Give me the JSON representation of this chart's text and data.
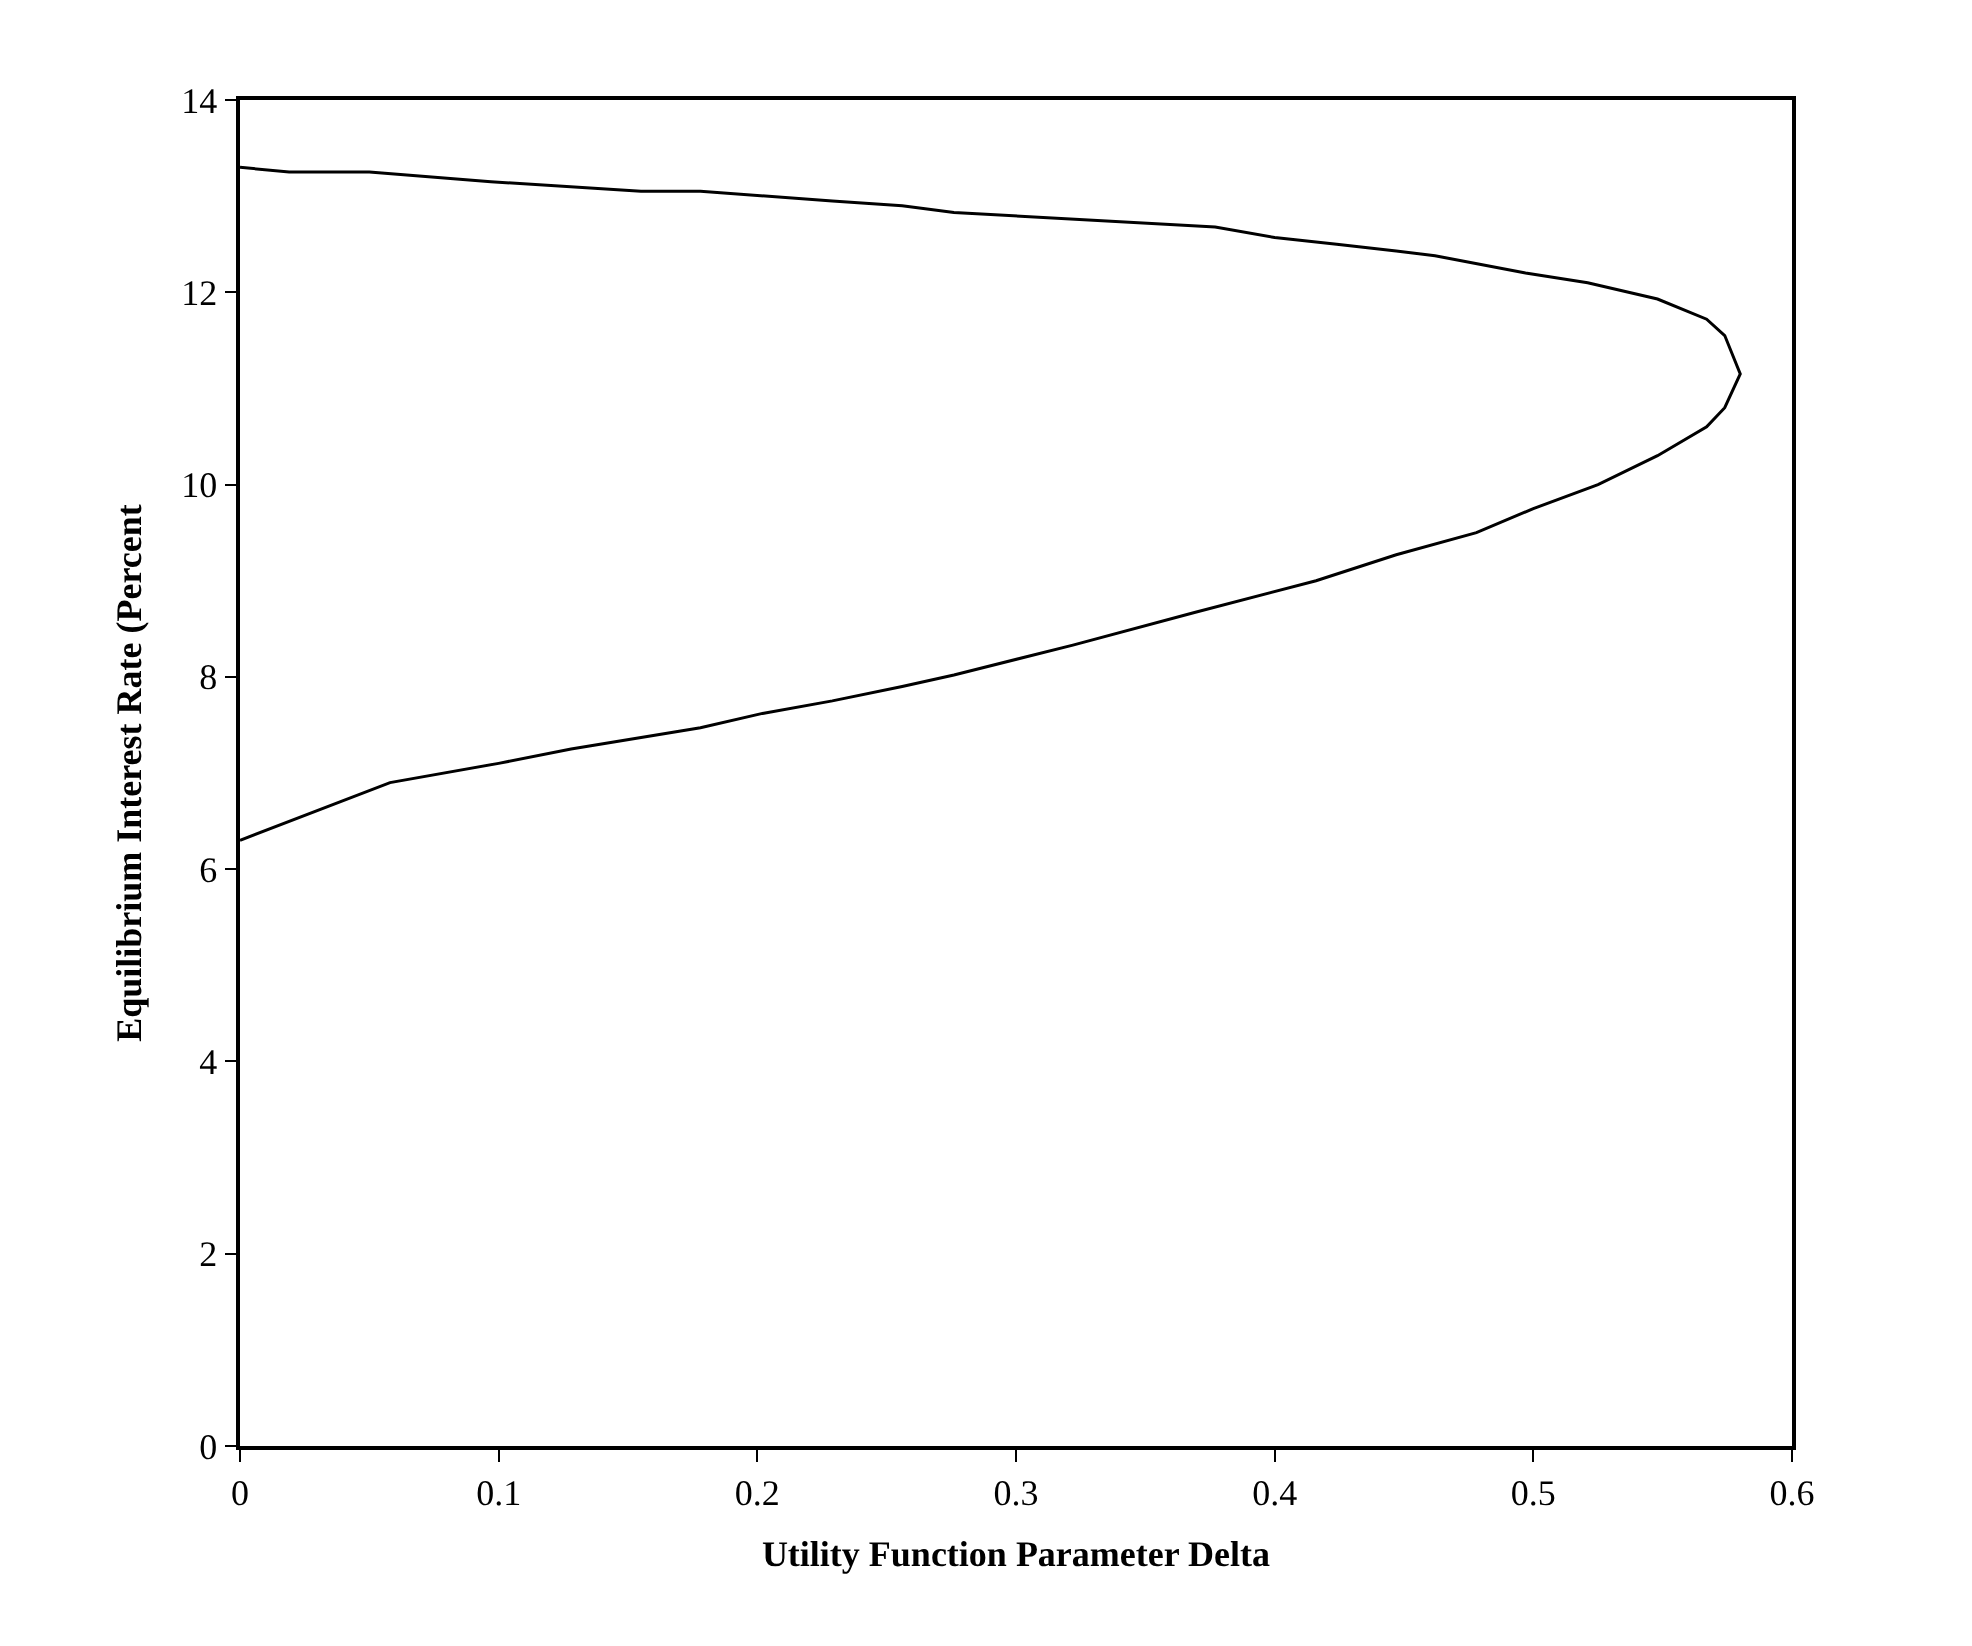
{
  "chart_data": {
    "type": "line",
    "xlabel": "Utility Function Parameter Delta",
    "ylabel": "Equilibrium Interest Rate (Percent",
    "xlim": [
      0,
      0.6
    ],
    "xticks": [
      0,
      0.1,
      0.2,
      0.3,
      0.4,
      0.5,
      0.6
    ],
    "ylim": [
      0,
      14
    ],
    "yticks": [
      0,
      2,
      4,
      6,
      8,
      10,
      12,
      14
    ],
    "marker": "none",
    "line_style": "solid",
    "series": [
      {
        "color": "#000000",
        "x": [
          0,
          0.019,
          0.05,
          0.097,
          0.155,
          0.178,
          0.229,
          0.256,
          0.276,
          0.377,
          0.4,
          0.424,
          0.447,
          0.462,
          0.497,
          0.521,
          0.548,
          0.567,
          0.574,
          0.58,
          0.574,
          0.567,
          0.548,
          0.525,
          0.5,
          0.478,
          0.447,
          0.416,
          0.369,
          0.322,
          0.276,
          0.256,
          0.229,
          0.202,
          0.178,
          0.128,
          0.1,
          0.058,
          0
        ],
        "values": [
          13.3,
          13.25,
          13.25,
          13.15,
          13.05,
          13.05,
          12.95,
          12.9,
          12.83,
          12.68,
          12.57,
          12.5,
          12.43,
          12.38,
          12.2,
          12.1,
          11.93,
          11.72,
          11.55,
          11.15,
          10.8,
          10.6,
          10.3,
          10.0,
          9.75,
          9.5,
          9.27,
          9.0,
          8.67,
          8.33,
          8.02,
          7.9,
          7.75,
          7.62,
          7.47,
          7.25,
          7.1,
          6.9,
          6.3
        ]
      }
    ]
  }
}
